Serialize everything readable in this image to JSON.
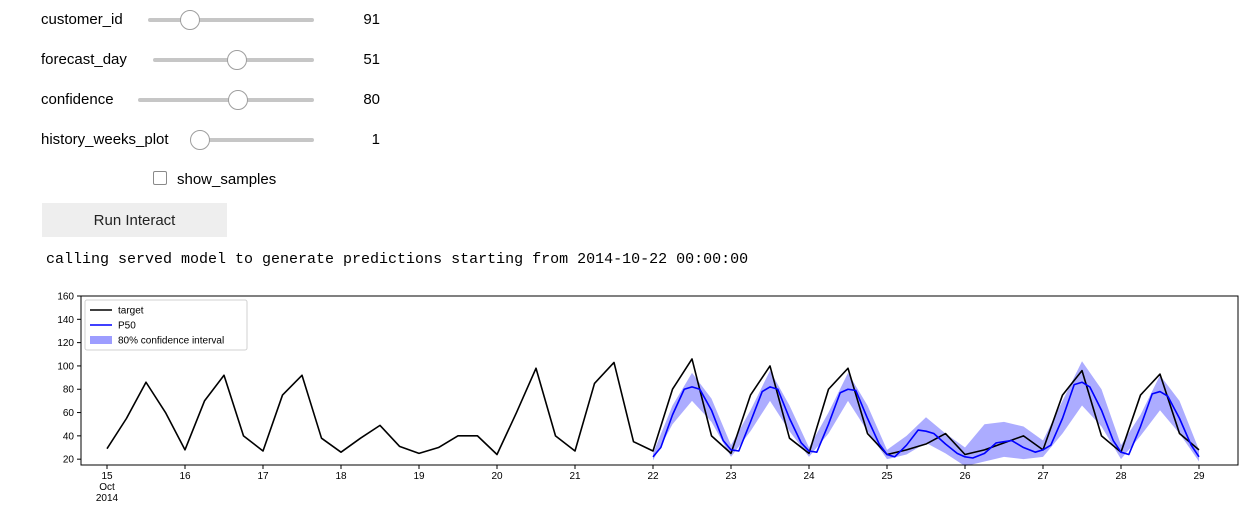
{
  "controls": {
    "customer_id": {
      "label": "customer_id",
      "value": "91",
      "level": 0.25
    },
    "forecast_day": {
      "label": "forecast_day",
      "value": "51",
      "level": 0.52
    },
    "confidence": {
      "label": "confidence",
      "value": "80",
      "level": 0.57
    },
    "history_weeks_plot": {
      "label": "history_weeks_plot",
      "value": "1",
      "level": 0.0
    },
    "show_samples": {
      "label": "show_samples",
      "checked": false
    }
  },
  "run_button": {
    "label": "Run Interact"
  },
  "output_text": "calling served model to generate predictions starting from 2014-10-22 00:00:00",
  "chart_data": {
    "type": "line",
    "x_unit": "days (2014-10-15 .. 2014-10-29)",
    "xlim": [
      "2014-10-14 16:00",
      "2014-10-29 12:00"
    ],
    "ylim": [
      15,
      160
    ],
    "yticks": [
      20,
      40,
      60,
      80,
      100,
      120,
      140,
      160
    ],
    "xtick_labels": [
      {
        "day": 15,
        "label": "15",
        "sub1": "Oct",
        "sub2": "2014"
      },
      {
        "day": 16,
        "label": "16"
      },
      {
        "day": 17,
        "label": "17"
      },
      {
        "day": 18,
        "label": "18"
      },
      {
        "day": 19,
        "label": "19"
      },
      {
        "day": 20,
        "label": "20"
      },
      {
        "day": 21,
        "label": "21"
      },
      {
        "day": 22,
        "label": "22"
      },
      {
        "day": 23,
        "label": "23"
      },
      {
        "day": 24,
        "label": "24"
      },
      {
        "day": 25,
        "label": "25"
      },
      {
        "day": 26,
        "label": "26"
      },
      {
        "day": 27,
        "label": "27"
      },
      {
        "day": 28,
        "label": "28"
      },
      {
        "day": 29,
        "label": "29"
      }
    ],
    "legend": {
      "position": "upper-left",
      "entries": [
        {
          "name": "target",
          "color": "#000000",
          "kind": "line"
        },
        {
          "name": "P50",
          "color": "#0000ff",
          "kind": "line"
        },
        {
          "name": "80% confidence interval",
          "color": "#9d9dff",
          "kind": "patch"
        }
      ]
    },
    "series": [
      {
        "name": "target",
        "color": "#000000",
        "x": [
          15.0,
          15.25,
          15.5,
          15.75,
          16.0,
          16.25,
          16.5,
          16.75,
          17.0,
          17.25,
          17.5,
          17.75,
          18.0,
          18.25,
          18.5,
          18.75,
          19.0,
          19.25,
          19.5,
          19.75,
          20.0,
          20.25,
          20.5,
          20.75,
          21.0,
          21.25,
          21.5,
          21.75,
          22.0,
          22.25,
          22.5,
          22.75,
          23.0,
          23.25,
          23.5,
          23.75,
          24.0,
          24.25,
          24.5,
          24.75,
          25.0,
          25.25,
          25.5,
          25.75,
          26.0,
          26.25,
          26.5,
          26.75,
          27.0,
          27.25,
          27.5,
          27.75,
          28.0,
          28.25,
          28.5,
          28.75,
          29.0
        ],
        "y": [
          29,
          55,
          86,
          60,
          28,
          70,
          92,
          40,
          27,
          75,
          92,
          38,
          26,
          38,
          49,
          31,
          25,
          30,
          40,
          40,
          24,
          60,
          98,
          40,
          27,
          85,
          103,
          35,
          27,
          80,
          106,
          40,
          25,
          75,
          100,
          38,
          25,
          80,
          98,
          42,
          24,
          28,
          33,
          42,
          24,
          28,
          34,
          40,
          28,
          75,
          96,
          40,
          26,
          75,
          93,
          42,
          28
        ]
      },
      {
        "name": "P50",
        "color": "#0000ff",
        "x": [
          22.0,
          22.1,
          22.25,
          22.4,
          22.5,
          22.6,
          22.75,
          22.9,
          23.0,
          23.1,
          23.25,
          23.4,
          23.5,
          23.6,
          23.75,
          23.9,
          24.0,
          24.1,
          24.25,
          24.4,
          24.5,
          24.6,
          24.75,
          24.9,
          25.0,
          25.1,
          25.25,
          25.4,
          25.5,
          25.6,
          25.75,
          25.9,
          26.0,
          26.1,
          26.25,
          26.4,
          26.5,
          26.6,
          26.75,
          26.9,
          27.0,
          27.1,
          27.25,
          27.4,
          27.5,
          27.6,
          27.75,
          27.9,
          28.0,
          28.1,
          28.25,
          28.4,
          28.5,
          28.6,
          28.75,
          28.9,
          29.0
        ],
        "y": [
          22,
          30,
          58,
          80,
          82,
          80,
          62,
          36,
          28,
          27,
          52,
          78,
          82,
          80,
          55,
          34,
          27,
          26,
          50,
          77,
          80,
          79,
          55,
          33,
          24,
          22,
          32,
          45,
          44,
          42,
          33,
          25,
          22,
          21,
          25,
          34,
          35,
          36,
          30,
          26,
          28,
          32,
          55,
          84,
          86,
          82,
          62,
          36,
          26,
          24,
          48,
          76,
          78,
          74,
          55,
          32,
          22
        ]
      }
    ],
    "confidence_band": {
      "name": "80% confidence interval",
      "color": "#9d9dff",
      "x": [
        22.0,
        22.25,
        22.5,
        22.75,
        23.0,
        23.25,
        23.5,
        23.75,
        24.0,
        24.25,
        24.5,
        24.75,
        25.0,
        25.25,
        25.5,
        25.75,
        26.0,
        26.25,
        26.5,
        26.75,
        27.0,
        27.25,
        27.5,
        27.75,
        28.0,
        28.25,
        28.5,
        28.75,
        29.0
      ],
      "lower": [
        19,
        50,
        70,
        52,
        22,
        44,
        70,
        44,
        22,
        42,
        70,
        44,
        20,
        24,
        34,
        25,
        14,
        18,
        22,
        20,
        22,
        42,
        66,
        48,
        20,
        40,
        62,
        42,
        18
      ],
      "upper": [
        25,
        66,
        94,
        72,
        32,
        62,
        96,
        66,
        30,
        60,
        94,
        66,
        28,
        40,
        56,
        42,
        30,
        50,
        52,
        48,
        36,
        70,
        104,
        80,
        32,
        58,
        92,
        70,
        28
      ]
    }
  }
}
